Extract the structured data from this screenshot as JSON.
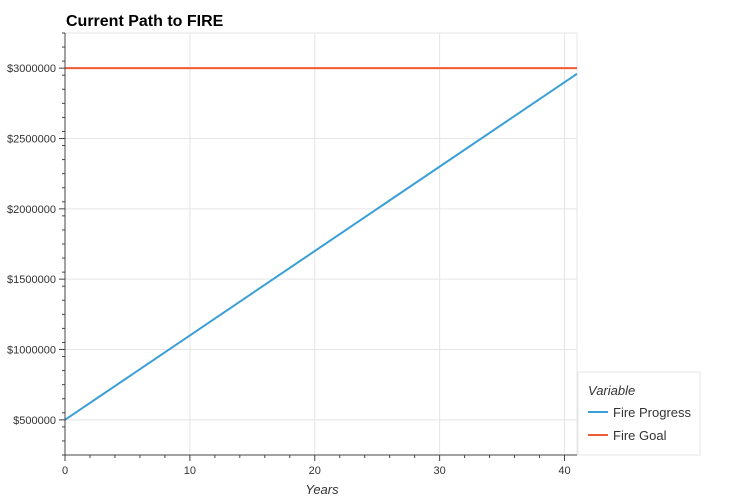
{
  "chart_data": {
    "type": "line",
    "title": "Current Path to FIRE",
    "xlabel": "Years",
    "ylabel": "",
    "xlim": [
      0,
      41
    ],
    "ylim": [
      250000,
      3250000
    ],
    "x_ticks": [
      0,
      10,
      20,
      30,
      40
    ],
    "y_ticks": [
      500000,
      1000000,
      1500000,
      2000000,
      2500000,
      3000000
    ],
    "y_tick_labels": [
      "$500000",
      "$1000000",
      "$1500000",
      "$2000000",
      "$2500000",
      "$3000000"
    ],
    "grid": true,
    "legend": {
      "title": "Variable",
      "placement": "right-bottom",
      "entries": [
        "Fire Progress",
        "Fire Goal"
      ]
    },
    "series": [
      {
        "name": "Fire Progress",
        "color": "#3a9fd6",
        "x": [
          0,
          41
        ],
        "y": [
          500000,
          2960000
        ]
      },
      {
        "name": "Fire Goal",
        "color": "#f05a32",
        "x": [
          0,
          41
        ],
        "y": [
          3000000,
          3000000
        ]
      }
    ]
  }
}
